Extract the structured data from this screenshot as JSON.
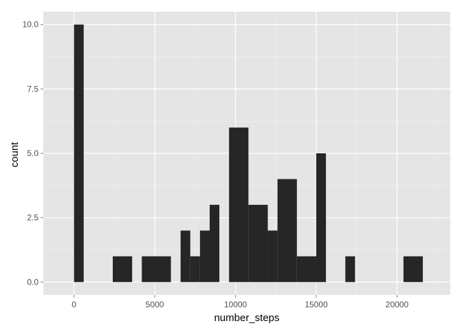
{
  "chart_data": {
    "type": "bar",
    "xlabel": "number_steps",
    "ylabel": "count",
    "xlim": [
      -1900,
      23300
    ],
    "ylim": [
      -0.5,
      10.5
    ],
    "x_ticks": [
      0,
      5000,
      10000,
      15000,
      20000
    ],
    "x_tick_labels": [
      "0",
      "5000",
      "10000",
      "15000",
      "20000"
    ],
    "y_ticks": [
      0,
      2.5,
      5,
      7.5,
      10
    ],
    "y_tick_labels": [
      "0.0",
      "2.5",
      "5.0",
      "7.5",
      "10.0"
    ],
    "grid": true,
    "bin_width": 600,
    "bins": [
      {
        "start": 0,
        "end": 600,
        "count": 10
      },
      {
        "start": 2400,
        "end": 3600,
        "count": 1
      },
      {
        "start": 4200,
        "end": 6000,
        "count": 1
      },
      {
        "start": 6600,
        "end": 7200,
        "count": 2
      },
      {
        "start": 7200,
        "end": 7800,
        "count": 1
      },
      {
        "start": 7800,
        "end": 8400,
        "count": 2
      },
      {
        "start": 8400,
        "end": 9000,
        "count": 3
      },
      {
        "start": 9600,
        "end": 10800,
        "count": 6
      },
      {
        "start": 10800,
        "end": 12000,
        "count": 3
      },
      {
        "start": 12000,
        "end": 12600,
        "count": 2
      },
      {
        "start": 12600,
        "end": 13800,
        "count": 4
      },
      {
        "start": 13800,
        "end": 15000,
        "count": 1
      },
      {
        "start": 15000,
        "end": 15600,
        "count": 5
      },
      {
        "start": 16800,
        "end": 17400,
        "count": 1
      },
      {
        "start": 20400,
        "end": 21600,
        "count": 1
      }
    ]
  },
  "colors": {
    "panel": "#e5e5e5",
    "grid_major": "#ffffff",
    "grid_minor": "#f2f2f2",
    "bar": "#262626",
    "tick": "#7f7f7f"
  }
}
